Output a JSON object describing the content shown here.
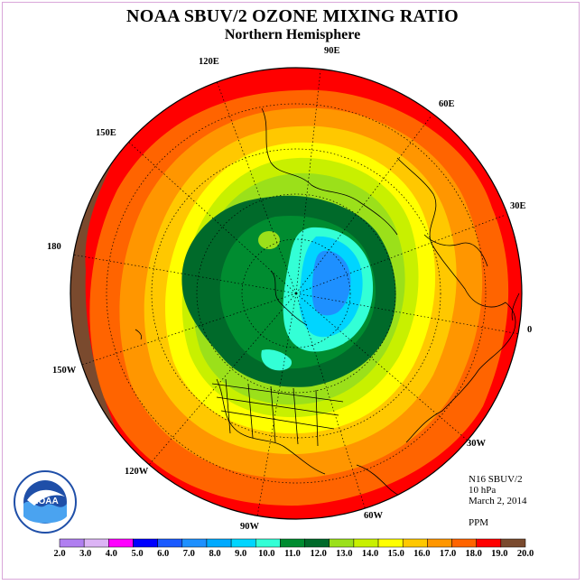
{
  "header": {
    "title": "NOAA SBUV/2 OZONE MIXING RATIO",
    "subtitle": "Northern Hemisphere"
  },
  "meridians": [
    {
      "label": "90E"
    },
    {
      "label": "60E"
    },
    {
      "label": "30E"
    },
    {
      "label": "0"
    },
    {
      "label": "30W"
    },
    {
      "label": "60W"
    },
    {
      "label": "90W"
    },
    {
      "label": "120W"
    },
    {
      "label": "150W"
    },
    {
      "label": "180"
    },
    {
      "label": "150E"
    },
    {
      "label": "120E"
    }
  ],
  "info": {
    "instrument": "N16 SBUV/2",
    "level": "10 hPa",
    "date": "March 2, 2014",
    "units": "PPM"
  },
  "logo": {
    "text": "NOAA"
  },
  "colorbar": {
    "ticks": [
      "2.0",
      "3.0",
      "4.0",
      "5.0",
      "6.0",
      "7.0",
      "8.0",
      "9.0",
      "10.0",
      "11.0",
      "12.0",
      "13.0",
      "14.0",
      "15.0",
      "16.0",
      "17.0",
      "18.0",
      "19.0",
      "20.0"
    ],
    "colors": [
      "#b07ff0",
      "#dcb4f5",
      "#ff00ff",
      "#0000ff",
      "#1a5aff",
      "#1e90ff",
      "#00aaff",
      "#00d5ff",
      "#33ffd6",
      "#008c30",
      "#006a2a",
      "#9be01a",
      "#c8f000",
      "#ffff00",
      "#ffc800",
      "#ff9600",
      "#ff6400",
      "#ff0000",
      "#7a4a2e"
    ]
  },
  "field": {
    "colors": {
      "brown": "#7a4a2e",
      "red": "#ff0000",
      "orange_red": "#ff6400",
      "orange": "#ff9600",
      "light_orange": "#ffc800",
      "yellow": "#ffff00",
      "yellow_green": "#c8f000",
      "lime": "#9be01a",
      "green": "#008c30",
      "dark_green": "#006a2a",
      "cyan": "#33ffd6",
      "sky": "#00d5ff",
      "blue": "#1e90ff"
    }
  }
}
